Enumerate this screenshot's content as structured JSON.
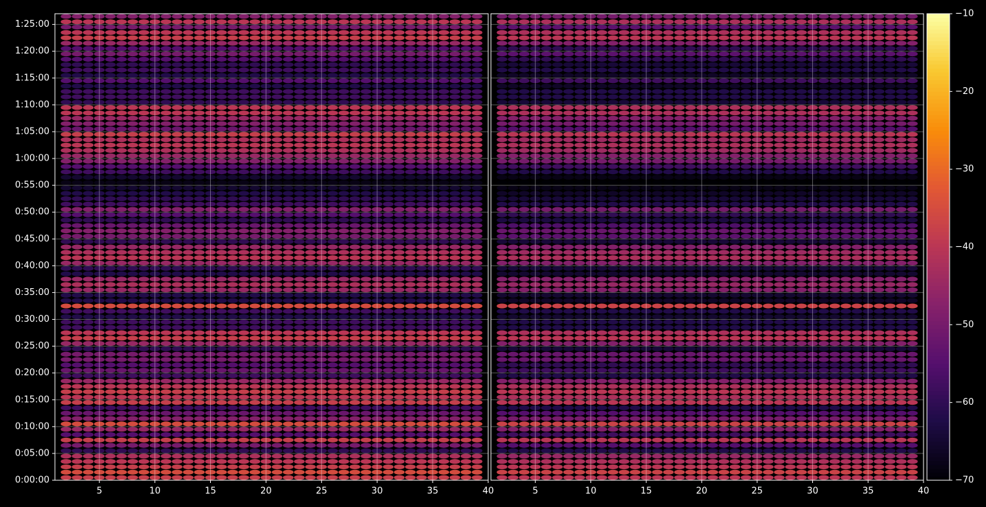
{
  "chart_data": {
    "type": "heatmap",
    "colormap": "inferno",
    "grid": true,
    "xlim": [
      1,
      40
    ],
    "xticks": [
      5,
      10,
      15,
      20,
      25,
      30,
      35,
      40
    ],
    "ylim": [
      0,
      5220
    ],
    "yticks": [
      {
        "value": 0,
        "label": "0:00:00"
      },
      {
        "value": 300,
        "label": "0:05:00"
      },
      {
        "value": 600,
        "label": "0:10:00"
      },
      {
        "value": 900,
        "label": "0:15:00"
      },
      {
        "value": 1200,
        "label": "0:20:00"
      },
      {
        "value": 1500,
        "label": "0:25:00"
      },
      {
        "value": 1800,
        "label": "0:30:00"
      },
      {
        "value": 2100,
        "label": "0:35:00"
      },
      {
        "value": 2400,
        "label": "0:40:00"
      },
      {
        "value": 2700,
        "label": "0:45:00"
      },
      {
        "value": 3000,
        "label": "0:50:00"
      },
      {
        "value": 3300,
        "label": "0:55:00"
      },
      {
        "value": 3600,
        "label": "1:00:00"
      },
      {
        "value": 3900,
        "label": "1:05:00"
      },
      {
        "value": 4200,
        "label": "1:10:00"
      },
      {
        "value": 4500,
        "label": "1:15:00"
      },
      {
        "value": 4800,
        "label": "1:20:00"
      },
      {
        "value": 5100,
        "label": "1:25:00"
      }
    ],
    "y": [
      30,
      90,
      150,
      210,
      270,
      330,
      390,
      450,
      510,
      570,
      630,
      690,
      750,
      810,
      870,
      930,
      990,
      1050,
      1110,
      1170,
      1230,
      1290,
      1350,
      1410,
      1470,
      1530,
      1590,
      1650,
      1710,
      1770,
      1830,
      1890,
      1950,
      2010,
      2070,
      2130,
      2190,
      2250,
      2310,
      2370,
      2430,
      2490,
      2550,
      2610,
      2670,
      2730,
      2790,
      2850,
      2910,
      2970,
      3030,
      3090,
      3150,
      3210,
      3270,
      3330,
      3390,
      3450,
      3510,
      3570,
      3630,
      3690,
      3750,
      3810,
      3870,
      3930,
      3990,
      4050,
      4110,
      4170,
      4230,
      4290,
      4350,
      4410,
      4470,
      4530,
      4590,
      4650,
      4710,
      4770,
      4830,
      4890,
      4950,
      5010,
      5070,
      5130,
      5190
    ],
    "panels": [
      {
        "values": [
          -38,
          -35,
          -38,
          -40,
          -42,
          -60,
          -50,
          -38,
          -55,
          -45,
          -35,
          -48,
          -52,
          -58,
          -38,
          -40,
          -38,
          -40,
          -45,
          -58,
          -52,
          -55,
          -50,
          -50,
          -60,
          -45,
          -38,
          -40,
          -58,
          -58,
          -62,
          -58,
          -35,
          -62,
          -62,
          -45,
          -42,
          -45,
          -62,
          -60,
          -45,
          -40,
          -42,
          -45,
          -60,
          -50,
          -48,
          -52,
          -60,
          -55,
          -48,
          -58,
          -60,
          -62,
          -65,
          -68,
          -65,
          -58,
          -55,
          -48,
          -45,
          -42,
          -40,
          -42,
          -38,
          -52,
          -48,
          -45,
          -40,
          -40,
          -60,
          -58,
          -58,
          -62,
          -55,
          -62,
          -58,
          -60,
          -55,
          -50,
          -55,
          -45,
          -38,
          -40,
          -50,
          -40,
          -48
        ]
      },
      {
        "values": [
          -40,
          -37,
          -40,
          -42,
          -45,
          -62,
          -55,
          -40,
          -58,
          -48,
          -37,
          -50,
          -55,
          -62,
          -40,
          -42,
          -40,
          -42,
          -48,
          -62,
          -58,
          -60,
          -52,
          -52,
          -64,
          -48,
          -40,
          -42,
          -62,
          -62,
          -65,
          -62,
          -37,
          -66,
          -65,
          -48,
          -45,
          -48,
          -65,
          -64,
          -48,
          -42,
          -44,
          -48,
          -64,
          -54,
          -52,
          -56,
          -63,
          -60,
          -50,
          -62,
          -64,
          -66,
          -68,
          -70,
          -68,
          -62,
          -58,
          -50,
          -48,
          -44,
          -42,
          -44,
          -40,
          -55,
          -50,
          -48,
          -42,
          -42,
          -64,
          -62,
          -62,
          -66,
          -58,
          -66,
          -62,
          -64,
          -60,
          -54,
          -60,
          -48,
          -40,
          -42,
          -54,
          -42,
          -50
        ]
      }
    ],
    "colorbar": {
      "lim": [
        -70,
        -10
      ],
      "ticks": [
        {
          "value": -70,
          "label": "−70"
        },
        {
          "value": -60,
          "label": "−60"
        },
        {
          "value": -50,
          "label": "−50"
        },
        {
          "value": -40,
          "label": "−40"
        },
        {
          "value": -30,
          "label": "−30"
        },
        {
          "value": -20,
          "label": "−20"
        },
        {
          "value": -10,
          "label": "−10"
        }
      ]
    }
  }
}
